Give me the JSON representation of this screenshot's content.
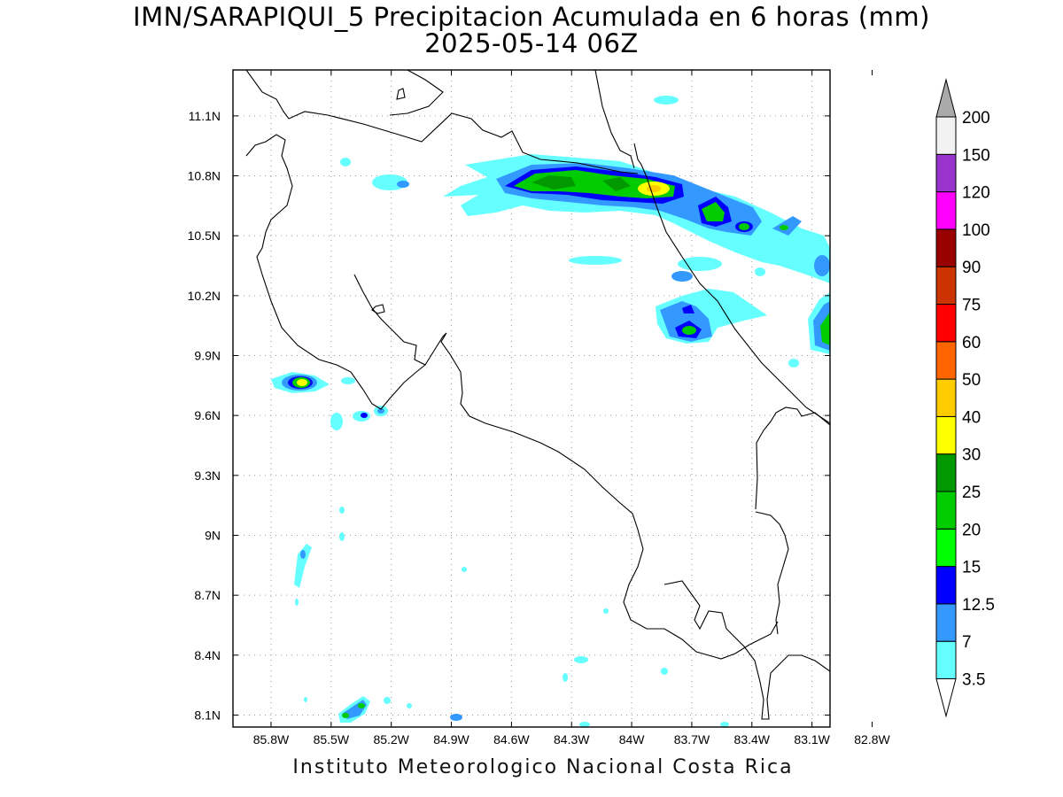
{
  "title": {
    "line1": "IMN/SARAPIQUI_5 Precipitacion Acumulada en 6 horas (mm)",
    "line2": "2025-05-14 06Z"
  },
  "footer": "Instituto Meteorologico Nacional Costa Rica",
  "map": {
    "lon_range": [
      -85.99,
      -83.01
    ],
    "lat_range": [
      8.04,
      11.33
    ],
    "x_tick_values": [
      -85.8,
      -85.5,
      -85.2,
      -84.9,
      -84.6,
      -84.3,
      -84.0,
      -83.7,
      -83.4,
      -83.1,
      -82.8
    ],
    "x_tick_labels": [
      "85.8W",
      "85.5W",
      "85.2W",
      "84.9W",
      "84.6W",
      "84.3W",
      "84W",
      "83.7W",
      "83.4W",
      "83.1W",
      "82.8W"
    ],
    "y_tick_values": [
      8.1,
      8.4,
      8.7,
      9.0,
      9.3,
      9.6,
      9.9,
      10.2,
      10.5,
      10.8,
      11.1
    ],
    "y_tick_labels": [
      "8.1N",
      "8.4N",
      "8.7N",
      "9N",
      "9.3N",
      "9.6N",
      "9.9N",
      "10.2N",
      "10.5N",
      "10.8N",
      "11.1N"
    ],
    "grid": "dotted"
  },
  "colorbar": {
    "labels": [
      "3.5",
      "7",
      "12.5",
      "15",
      "20",
      "25",
      "30",
      "40",
      "50",
      "60",
      "75",
      "90",
      "100",
      "120",
      "150",
      "200"
    ],
    "colors": [
      "#ffffff",
      "#66ffff",
      "#3399ff",
      "#0000ff",
      "#00ff00",
      "#00cc00",
      "#009900",
      "#ffff00",
      "#ffcc00",
      "#ff6600",
      "#ff0000",
      "#cc3300",
      "#990000",
      "#ff00ff",
      "#9933cc",
      "#f2f2f2",
      "#aaaaaa"
    ]
  }
}
